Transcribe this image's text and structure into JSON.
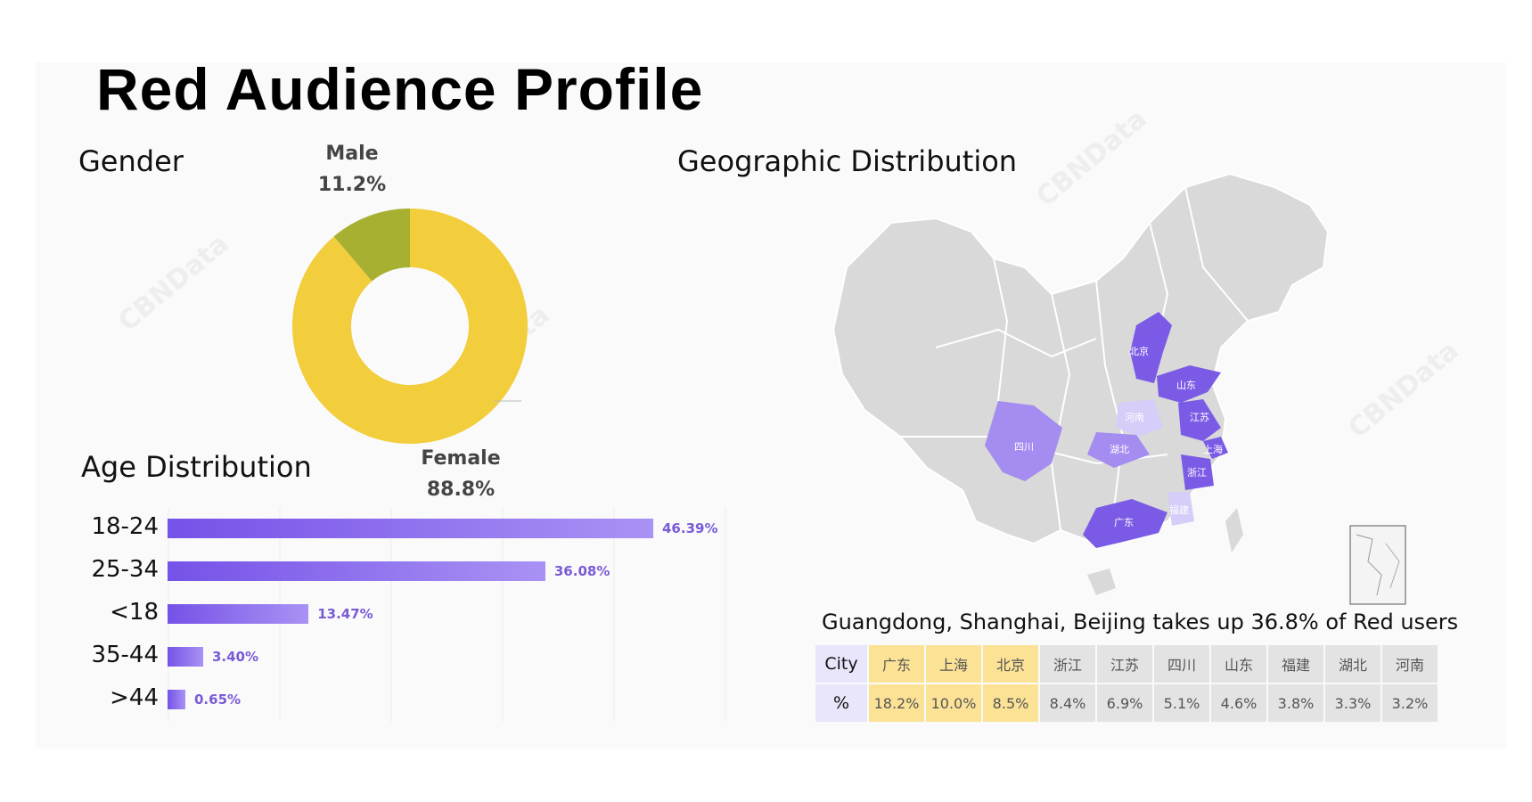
{
  "title": "Red Audience Profile",
  "gender": {
    "section_title": "Gender",
    "male_label": "Male",
    "male_pct": "11.2%",
    "female_label": "Female",
    "female_pct": "88.8%"
  },
  "age": {
    "section_title": "Age Distribution"
  },
  "geo": {
    "section_title": "Geographic Distribution",
    "map_labels": [
      "北京",
      "山东",
      "河南",
      "江苏",
      "四川",
      "湖北",
      "上海",
      "浙江",
      "福建",
      "广东"
    ],
    "caption": "Guangdong, Shanghai, Beijing takes up 36.8% of Red users",
    "table": {
      "row1_header": "City",
      "row2_header": "%",
      "cities": [
        "广东",
        "上海",
        "北京",
        "浙江",
        "江苏",
        "四川",
        "山东",
        "福建",
        "湖北",
        "河南"
      ],
      "values": [
        "18.2%",
        "10.0%",
        "8.5%",
        "8.4%",
        "6.9%",
        "5.1%",
        "4.6%",
        "3.8%",
        "3.3%",
        "3.2%"
      ]
    }
  },
  "colors": {
    "female": "#f2cd3c",
    "male": "#a8b032",
    "bar_start": "#7552e8",
    "bar_end": "#a992f4",
    "highlight_cell": "#fbe295",
    "map_base": "#d9d9d9",
    "map_dark": "#7b5be6",
    "map_medium": "#a48cf0",
    "map_light": "#d6cdf8"
  },
  "chart_data": [
    {
      "type": "pie",
      "title": "Gender",
      "categories": [
        "Male",
        "Female"
      ],
      "values": [
        11.2,
        88.8
      ],
      "colors": [
        "#a8b032",
        "#f2cd3c"
      ]
    },
    {
      "type": "bar",
      "orientation": "horizontal",
      "title": "Age Distribution",
      "categories": [
        "18-24",
        "25-34",
        "<18",
        "35-44",
        ">44"
      ],
      "values": [
        46.39,
        36.08,
        13.47,
        3.4,
        0.65
      ],
      "data_labels": [
        "46.39%",
        "36.08%",
        "13.47%",
        "3.40%",
        "0.65%"
      ],
      "grid": true
    },
    {
      "type": "table",
      "title": "Geographic Distribution",
      "categories": [
        "广东",
        "上海",
        "北京",
        "浙江",
        "江苏",
        "四川",
        "山东",
        "福建",
        "湖北",
        "河南"
      ],
      "values": [
        18.2,
        10.0,
        8.5,
        8.4,
        6.9,
        5.1,
        4.6,
        3.8,
        3.3,
        3.2
      ]
    }
  ]
}
